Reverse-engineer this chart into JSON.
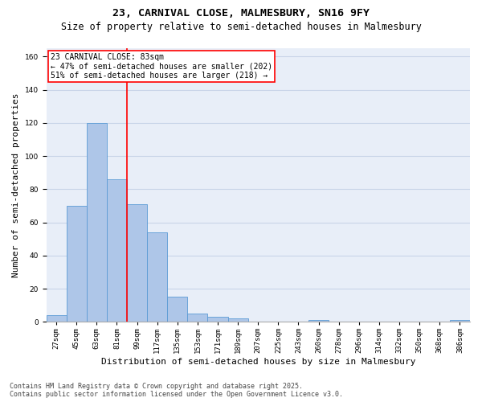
{
  "title_line1": "23, CARNIVAL CLOSE, MALMESBURY, SN16 9FY",
  "title_line2": "Size of property relative to semi-detached houses in Malmesbury",
  "xlabel": "Distribution of semi-detached houses by size in Malmesbury",
  "ylabel": "Number of semi-detached properties",
  "categories": [
    "27sqm",
    "45sqm",
    "63sqm",
    "81sqm",
    "99sqm",
    "117sqm",
    "135sqm",
    "153sqm",
    "171sqm",
    "189sqm",
    "207sqm",
    "225sqm",
    "243sqm",
    "260sqm",
    "278sqm",
    "296sqm",
    "314sqm",
    "332sqm",
    "350sqm",
    "368sqm",
    "386sqm"
  ],
  "values": [
    4,
    70,
    120,
    86,
    71,
    54,
    15,
    5,
    3,
    2,
    0,
    0,
    0,
    1,
    0,
    0,
    0,
    0,
    0,
    0,
    1
  ],
  "bar_color": "#aec6e8",
  "bar_edge_color": "#5b9bd5",
  "annotation_text_line1": "23 CARNIVAL CLOSE: 83sqm",
  "annotation_text_line2": "← 47% of semi-detached houses are smaller (202)",
  "annotation_text_line3": "51% of semi-detached houses are larger (218) →",
  "annotation_box_color": "white",
  "annotation_box_edge_color": "red",
  "vline_color": "red",
  "ylim": [
    0,
    165
  ],
  "yticks": [
    0,
    20,
    40,
    60,
    80,
    100,
    120,
    140,
    160
  ],
  "grid_color": "#c8d4e8",
  "background_color": "#e8eef8",
  "footer_line1": "Contains HM Land Registry data © Crown copyright and database right 2025.",
  "footer_line2": "Contains public sector information licensed under the Open Government Licence v3.0.",
  "title_fontsize": 9.5,
  "subtitle_fontsize": 8.5,
  "axis_label_fontsize": 8,
  "tick_fontsize": 6.5,
  "annotation_fontsize": 7,
  "footer_fontsize": 6
}
